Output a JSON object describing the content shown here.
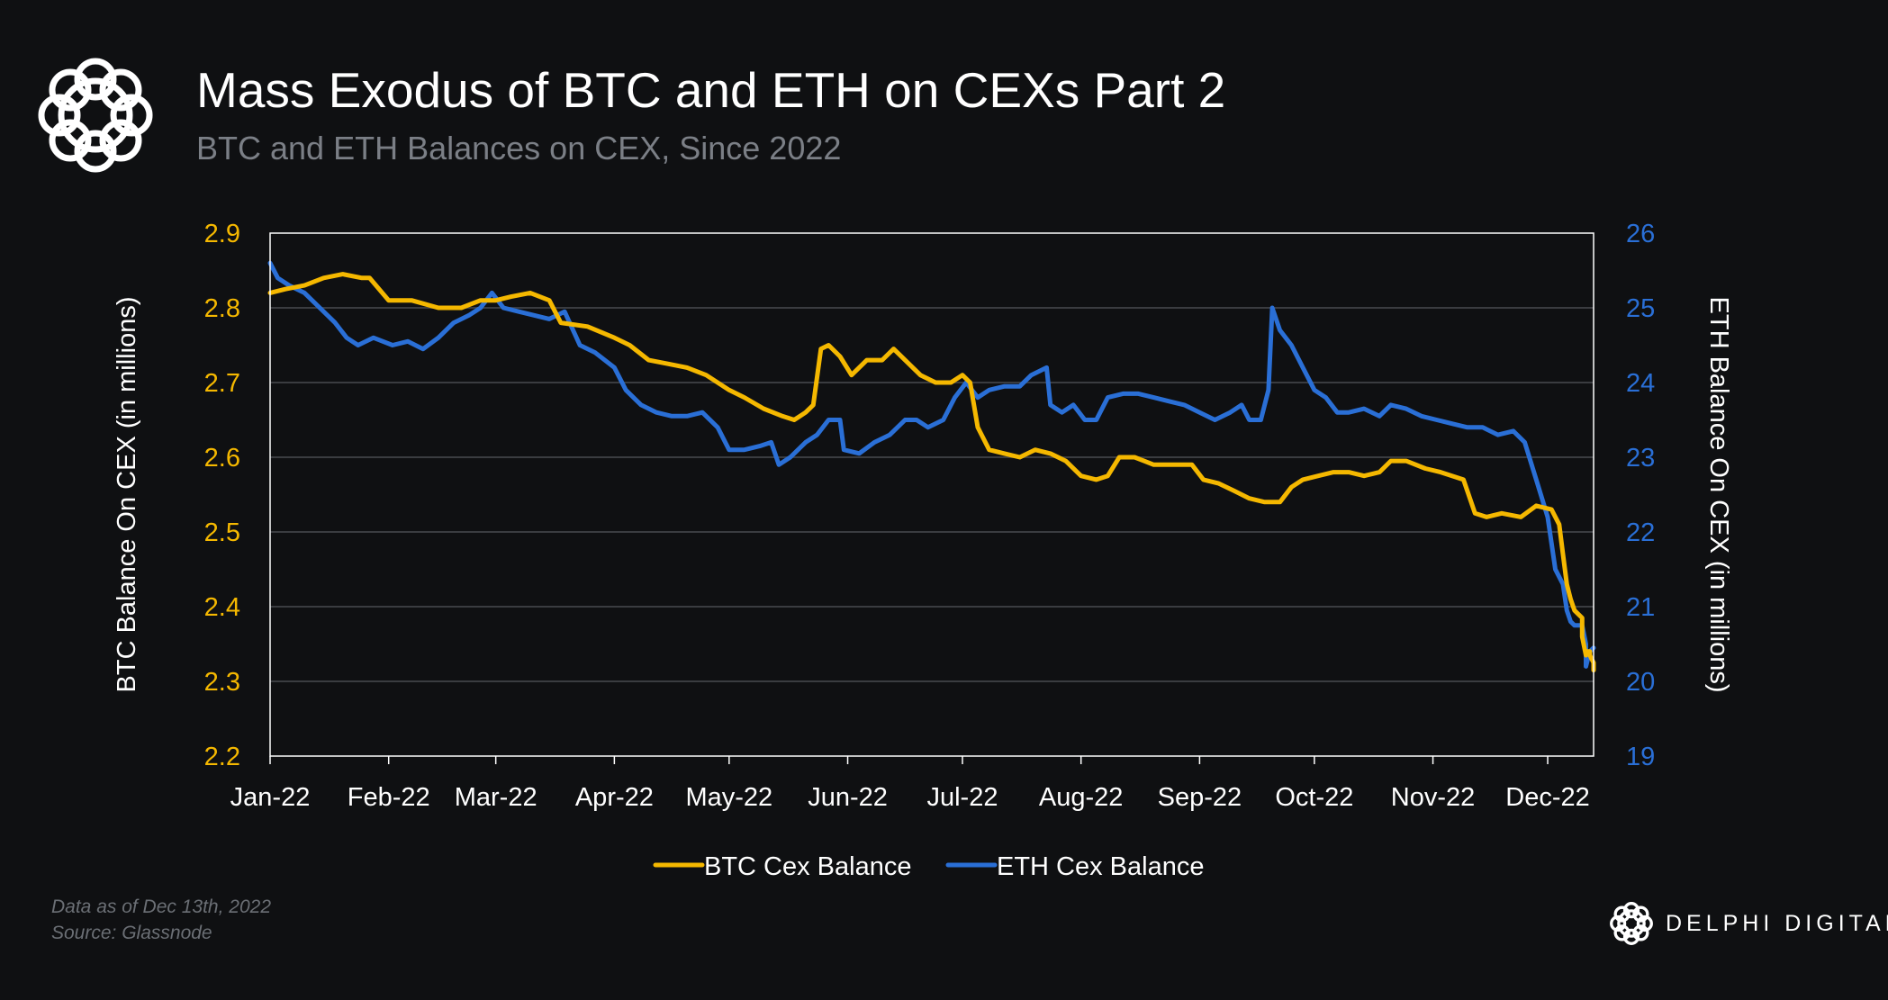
{
  "header": {
    "title": "Mass Exodus of BTC and ETH on CEXs Part 2",
    "subtitle": "BTC and ETH Balances on CEX, Since 2022"
  },
  "footer": {
    "data_note": "Data as of Dec 13th, 2022",
    "source": "Source: Glassnode",
    "brand": "DELPHI DIGITAL"
  },
  "colors": {
    "btc": "#f5b800",
    "eth": "#2a6fd6",
    "background": "#0f1012",
    "grid": "#3a3c40"
  },
  "chart_data": {
    "type": "line",
    "title": "Mass Exodus of BTC and ETH on CEXs Part 2",
    "subtitle": "BTC and ETH Balances on CEX, Since 2022",
    "x_tick_labels": [
      "Jan-22",
      "Feb-22",
      "Mar-22",
      "Apr-22",
      "May-22",
      "Jun-22",
      "Jul-22",
      "Aug-22",
      "Sep-22",
      "Oct-22",
      "Nov-22",
      "Dec-22"
    ],
    "xlim": [
      "2022-01-01",
      "2022-12-13"
    ],
    "y_left": {
      "label": "BTC Balance On CEX (in millions)",
      "lim": [
        2.2,
        2.9
      ],
      "ticks": [
        "2.2",
        "2.3",
        "2.4",
        "2.5",
        "2.6",
        "2.7",
        "2.8",
        "2.9"
      ]
    },
    "y_right": {
      "label": "ETH Balance On CEX (in millions)",
      "lim": [
        19,
        26
      ],
      "ticks": [
        "19",
        "20",
        "21",
        "22",
        "23",
        "24",
        "25",
        "26"
      ]
    },
    "grid": true,
    "legend": "bottom-center",
    "series": [
      {
        "name": "BTC Cex Balance",
        "axis": "left",
        "points": [
          [
            "2022-01-01",
            2.82
          ],
          [
            "2022-01-05",
            2.825
          ],
          [
            "2022-01-10",
            2.83
          ],
          [
            "2022-01-15",
            2.84
          ],
          [
            "2022-01-20",
            2.845
          ],
          [
            "2022-01-25",
            2.84
          ],
          [
            "2022-01-27",
            2.84
          ],
          [
            "2022-02-01",
            2.81
          ],
          [
            "2022-02-07",
            2.81
          ],
          [
            "2022-02-14",
            2.8
          ],
          [
            "2022-02-20",
            2.8
          ],
          [
            "2022-02-25",
            2.81
          ],
          [
            "2022-03-01",
            2.81
          ],
          [
            "2022-03-05",
            2.815
          ],
          [
            "2022-03-10",
            2.82
          ],
          [
            "2022-03-15",
            2.81
          ],
          [
            "2022-03-18",
            2.78
          ],
          [
            "2022-03-25",
            2.775
          ],
          [
            "2022-04-01",
            2.76
          ],
          [
            "2022-04-05",
            2.75
          ],
          [
            "2022-04-10",
            2.73
          ],
          [
            "2022-04-15",
            2.725
          ],
          [
            "2022-04-20",
            2.72
          ],
          [
            "2022-04-25",
            2.71
          ],
          [
            "2022-05-01",
            2.69
          ],
          [
            "2022-05-05",
            2.68
          ],
          [
            "2022-05-10",
            2.665
          ],
          [
            "2022-05-15",
            2.655
          ],
          [
            "2022-05-18",
            2.65
          ],
          [
            "2022-05-21",
            2.66
          ],
          [
            "2022-05-23",
            2.67
          ],
          [
            "2022-05-25",
            2.745
          ],
          [
            "2022-05-27",
            2.75
          ],
          [
            "2022-05-30",
            2.735
          ],
          [
            "2022-06-02",
            2.71
          ],
          [
            "2022-06-06",
            2.73
          ],
          [
            "2022-06-10",
            2.73
          ],
          [
            "2022-06-13",
            2.745
          ],
          [
            "2022-06-16",
            2.73
          ],
          [
            "2022-06-20",
            2.71
          ],
          [
            "2022-06-24",
            2.7
          ],
          [
            "2022-06-28",
            2.7
          ],
          [
            "2022-07-01",
            2.71
          ],
          [
            "2022-07-03",
            2.7
          ],
          [
            "2022-07-05",
            2.64
          ],
          [
            "2022-07-08",
            2.61
          ],
          [
            "2022-07-12",
            2.605
          ],
          [
            "2022-07-16",
            2.6
          ],
          [
            "2022-07-20",
            2.61
          ],
          [
            "2022-07-24",
            2.605
          ],
          [
            "2022-07-28",
            2.595
          ],
          [
            "2022-08-01",
            2.575
          ],
          [
            "2022-08-05",
            2.57
          ],
          [
            "2022-08-08",
            2.575
          ],
          [
            "2022-08-11",
            2.6
          ],
          [
            "2022-08-15",
            2.6
          ],
          [
            "2022-08-20",
            2.59
          ],
          [
            "2022-08-25",
            2.59
          ],
          [
            "2022-08-30",
            2.59
          ],
          [
            "2022-09-02",
            2.57
          ],
          [
            "2022-09-06",
            2.565
          ],
          [
            "2022-09-10",
            2.555
          ],
          [
            "2022-09-14",
            2.545
          ],
          [
            "2022-09-18",
            2.54
          ],
          [
            "2022-09-22",
            2.54
          ],
          [
            "2022-09-25",
            2.56
          ],
          [
            "2022-09-28",
            2.57
          ],
          [
            "2022-10-02",
            2.575
          ],
          [
            "2022-10-06",
            2.58
          ],
          [
            "2022-10-10",
            2.58
          ],
          [
            "2022-10-14",
            2.575
          ],
          [
            "2022-10-18",
            2.58
          ],
          [
            "2022-10-21",
            2.595
          ],
          [
            "2022-10-25",
            2.595
          ],
          [
            "2022-10-30",
            2.585
          ],
          [
            "2022-11-03",
            2.58
          ],
          [
            "2022-11-06",
            2.575
          ],
          [
            "2022-11-09",
            2.57
          ],
          [
            "2022-11-12",
            2.525
          ],
          [
            "2022-11-15",
            2.52
          ],
          [
            "2022-11-19",
            2.525
          ],
          [
            "2022-11-24",
            2.52
          ],
          [
            "2022-11-28",
            2.535
          ],
          [
            "2022-12-02",
            2.53
          ],
          [
            "2022-12-04",
            2.51
          ],
          [
            "2022-12-05",
            2.47
          ],
          [
            "2022-12-06",
            2.43
          ],
          [
            "2022-12-07",
            2.41
          ],
          [
            "2022-12-08",
            2.395
          ],
          [
            "2022-12-09",
            2.39
          ],
          [
            "2022-12-10",
            2.385
          ],
          [
            "2022-12-10",
            2.36
          ],
          [
            "2022-12-11",
            2.335
          ],
          [
            "2022-12-11",
            2.34
          ],
          [
            "2022-12-12",
            2.34
          ],
          [
            "2022-12-12",
            2.335
          ],
          [
            "2022-12-13",
            2.325
          ],
          [
            "2022-12-13",
            2.315
          ]
        ]
      },
      {
        "name": "ETH Cex Balance",
        "axis": "right",
        "points": [
          [
            "2022-01-01",
            25.6
          ],
          [
            "2022-01-03",
            25.4
          ],
          [
            "2022-01-06",
            25.3
          ],
          [
            "2022-01-10",
            25.2
          ],
          [
            "2022-01-14",
            25.0
          ],
          [
            "2022-01-18",
            24.8
          ],
          [
            "2022-01-21",
            24.6
          ],
          [
            "2022-01-24",
            24.5
          ],
          [
            "2022-01-28",
            24.6
          ],
          [
            "2022-02-02",
            24.5
          ],
          [
            "2022-02-06",
            24.55
          ],
          [
            "2022-02-10",
            24.45
          ],
          [
            "2022-02-14",
            24.6
          ],
          [
            "2022-02-18",
            24.8
          ],
          [
            "2022-02-22",
            24.9
          ],
          [
            "2022-02-25",
            25.0
          ],
          [
            "2022-02-28",
            25.2
          ],
          [
            "2022-03-03",
            25.0
          ],
          [
            "2022-03-07",
            24.95
          ],
          [
            "2022-03-11",
            24.9
          ],
          [
            "2022-03-15",
            24.85
          ],
          [
            "2022-03-19",
            24.95
          ],
          [
            "2022-03-23",
            24.5
          ],
          [
            "2022-03-27",
            24.4
          ],
          [
            "2022-04-01",
            24.2
          ],
          [
            "2022-04-04",
            23.9
          ],
          [
            "2022-04-08",
            23.7
          ],
          [
            "2022-04-12",
            23.6
          ],
          [
            "2022-04-16",
            23.55
          ],
          [
            "2022-04-20",
            23.55
          ],
          [
            "2022-04-24",
            23.6
          ],
          [
            "2022-04-28",
            23.4
          ],
          [
            "2022-05-01",
            23.1
          ],
          [
            "2022-05-05",
            23.1
          ],
          [
            "2022-05-09",
            23.15
          ],
          [
            "2022-05-12",
            23.2
          ],
          [
            "2022-05-14",
            22.9
          ],
          [
            "2022-05-17",
            23.0
          ],
          [
            "2022-05-21",
            23.2
          ],
          [
            "2022-05-24",
            23.3
          ],
          [
            "2022-05-27",
            23.5
          ],
          [
            "2022-05-30",
            23.5
          ],
          [
            "2022-05-31",
            23.1
          ],
          [
            "2022-06-04",
            23.05
          ],
          [
            "2022-06-08",
            23.2
          ],
          [
            "2022-06-12",
            23.3
          ],
          [
            "2022-06-16",
            23.5
          ],
          [
            "2022-06-19",
            23.5
          ],
          [
            "2022-06-22",
            23.4
          ],
          [
            "2022-06-26",
            23.5
          ],
          [
            "2022-06-29",
            23.8
          ],
          [
            "2022-07-02",
            24.0
          ],
          [
            "2022-07-05",
            23.8
          ],
          [
            "2022-07-08",
            23.9
          ],
          [
            "2022-07-12",
            23.95
          ],
          [
            "2022-07-16",
            23.95
          ],
          [
            "2022-07-19",
            24.1
          ],
          [
            "2022-07-23",
            24.2
          ],
          [
            "2022-07-24",
            23.7
          ],
          [
            "2022-07-27",
            23.6
          ],
          [
            "2022-07-30",
            23.7
          ],
          [
            "2022-08-02",
            23.5
          ],
          [
            "2022-08-05",
            23.5
          ],
          [
            "2022-08-08",
            23.8
          ],
          [
            "2022-08-12",
            23.85
          ],
          [
            "2022-08-16",
            23.85
          ],
          [
            "2022-08-20",
            23.8
          ],
          [
            "2022-08-24",
            23.75
          ],
          [
            "2022-08-28",
            23.7
          ],
          [
            "2022-09-01",
            23.6
          ],
          [
            "2022-09-05",
            23.5
          ],
          [
            "2022-09-09",
            23.6
          ],
          [
            "2022-09-12",
            23.7
          ],
          [
            "2022-09-14",
            23.5
          ],
          [
            "2022-09-17",
            23.5
          ],
          [
            "2022-09-19",
            23.9
          ],
          [
            "2022-09-20",
            25.0
          ],
          [
            "2022-09-22",
            24.7
          ],
          [
            "2022-09-25",
            24.5
          ],
          [
            "2022-09-28",
            24.2
          ],
          [
            "2022-10-01",
            23.9
          ],
          [
            "2022-10-04",
            23.8
          ],
          [
            "2022-10-07",
            23.6
          ],
          [
            "2022-10-10",
            23.6
          ],
          [
            "2022-10-14",
            23.65
          ],
          [
            "2022-10-18",
            23.55
          ],
          [
            "2022-10-21",
            23.7
          ],
          [
            "2022-10-25",
            23.65
          ],
          [
            "2022-10-29",
            23.55
          ],
          [
            "2022-11-02",
            23.5
          ],
          [
            "2022-11-06",
            23.45
          ],
          [
            "2022-11-10",
            23.4
          ],
          [
            "2022-11-14",
            23.4
          ],
          [
            "2022-11-18",
            23.3
          ],
          [
            "2022-11-22",
            23.35
          ],
          [
            "2022-11-25",
            23.2
          ],
          [
            "2022-11-28",
            22.7
          ],
          [
            "2022-12-01",
            22.2
          ],
          [
            "2022-12-03",
            21.5
          ],
          [
            "2022-12-05",
            21.3
          ],
          [
            "2022-12-06",
            20.95
          ],
          [
            "2022-12-07",
            20.8
          ],
          [
            "2022-12-08",
            20.75
          ],
          [
            "2022-12-09",
            20.75
          ],
          [
            "2022-12-10",
            20.75
          ],
          [
            "2022-12-11",
            20.5
          ],
          [
            "2022-12-11",
            20.2
          ],
          [
            "2022-12-12",
            20.4
          ],
          [
            "2022-12-13",
            20.45
          ]
        ]
      }
    ]
  }
}
